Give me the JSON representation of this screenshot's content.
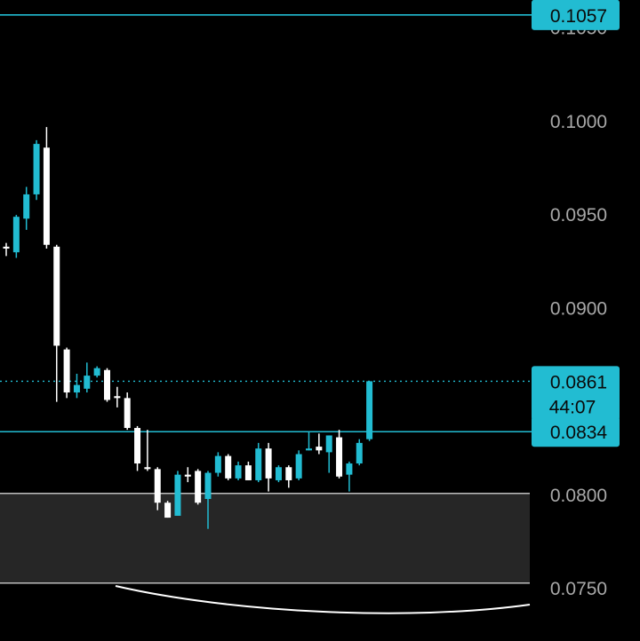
{
  "chart_data": {
    "type": "candlestick",
    "title": "",
    "xlabel": "",
    "ylabel": "",
    "ylim": [
      0.0722,
      0.1065
    ],
    "y_ticks": [
      "0.1050",
      "0.1000",
      "0.0950",
      "0.0900",
      "0.0800",
      "0.0750"
    ],
    "price_lines": [
      {
        "label": "0.1057",
        "value": 0.1057
      },
      {
        "label": "0.0834",
        "value": 0.0834
      }
    ],
    "current_price": {
      "label": "0.0861",
      "value": 0.0861,
      "countdown": "44:07"
    },
    "zone": {
      "low": 0.0753,
      "high": 0.0801
    },
    "bullish_color": "#22bcd2",
    "bearish_color": "#ffffff",
    "candles": [
      {
        "o": 0.0933,
        "h": 0.0935,
        "l": 0.0928,
        "c": 0.0932
      },
      {
        "o": 0.093,
        "h": 0.095,
        "l": 0.0927,
        "c": 0.0949
      },
      {
        "o": 0.0948,
        "h": 0.0965,
        "l": 0.0942,
        "c": 0.0961
      },
      {
        "o": 0.0961,
        "h": 0.099,
        "l": 0.0958,
        "c": 0.0988
      },
      {
        "o": 0.0986,
        "h": 0.0997,
        "l": 0.0932,
        "c": 0.0934
      },
      {
        "o": 0.0933,
        "h": 0.0934,
        "l": 0.085,
        "c": 0.088
      },
      {
        "o": 0.0878,
        "h": 0.0879,
        "l": 0.0852,
        "c": 0.0855
      },
      {
        "o": 0.0855,
        "h": 0.0865,
        "l": 0.0852,
        "c": 0.0859
      },
      {
        "o": 0.0857,
        "h": 0.0871,
        "l": 0.0855,
        "c": 0.0864
      },
      {
        "o": 0.0864,
        "h": 0.0869,
        "l": 0.0863,
        "c": 0.0868
      },
      {
        "o": 0.0867,
        "h": 0.0868,
        "l": 0.085,
        "c": 0.0851
      },
      {
        "o": 0.0853,
        "h": 0.0858,
        "l": 0.0847,
        "c": 0.0852
      },
      {
        "o": 0.0852,
        "h": 0.0855,
        "l": 0.0835,
        "c": 0.0836
      },
      {
        "o": 0.0836,
        "h": 0.0837,
        "l": 0.0813,
        "c": 0.0817
      },
      {
        "o": 0.0815,
        "h": 0.0835,
        "l": 0.0813,
        "c": 0.0814
      },
      {
        "o": 0.0814,
        "h": 0.0815,
        "l": 0.0792,
        "c": 0.0796
      },
      {
        "o": 0.0796,
        "h": 0.0797,
        "l": 0.0788,
        "c": 0.0788
      },
      {
        "o": 0.0789,
        "h": 0.0813,
        "l": 0.0789,
        "c": 0.0811
      },
      {
        "o": 0.0811,
        "h": 0.0815,
        "l": 0.0807,
        "c": 0.081
      },
      {
        "o": 0.0813,
        "h": 0.0814,
        "l": 0.0795,
        "c": 0.0796
      },
      {
        "o": 0.0798,
        "h": 0.0813,
        "l": 0.0782,
        "c": 0.0812
      },
      {
        "o": 0.0812,
        "h": 0.0823,
        "l": 0.081,
        "c": 0.0821
      },
      {
        "o": 0.0821,
        "h": 0.0822,
        "l": 0.0808,
        "c": 0.0809
      },
      {
        "o": 0.0809,
        "h": 0.0818,
        "l": 0.0808,
        "c": 0.0816
      },
      {
        "o": 0.0816,
        "h": 0.0818,
        "l": 0.0808,
        "c": 0.0808
      },
      {
        "o": 0.0808,
        "h": 0.0828,
        "l": 0.0807,
        "c": 0.0825
      },
      {
        "o": 0.0825,
        "h": 0.0828,
        "l": 0.0802,
        "c": 0.0809
      },
      {
        "o": 0.0808,
        "h": 0.0816,
        "l": 0.0807,
        "c": 0.0815
      },
      {
        "o": 0.0815,
        "h": 0.0816,
        "l": 0.0804,
        "c": 0.0808
      },
      {
        "o": 0.0809,
        "h": 0.0824,
        "l": 0.0808,
        "c": 0.0822
      },
      {
        "o": 0.0824,
        "h": 0.0834,
        "l": 0.0824,
        "c": 0.0825
      },
      {
        "o": 0.0826,
        "h": 0.0833,
        "l": 0.0822,
        "c": 0.0824
      },
      {
        "o": 0.0823,
        "h": 0.0832,
        "l": 0.0812,
        "c": 0.0832
      },
      {
        "o": 0.0831,
        "h": 0.0835,
        "l": 0.0809,
        "c": 0.081
      },
      {
        "o": 0.0811,
        "h": 0.0818,
        "l": 0.0802,
        "c": 0.0817
      },
      {
        "o": 0.0817,
        "h": 0.083,
        "l": 0.0816,
        "c": 0.0828
      },
      {
        "o": 0.083,
        "h": 0.0861,
        "l": 0.0829,
        "c": 0.0861
      }
    ]
  }
}
